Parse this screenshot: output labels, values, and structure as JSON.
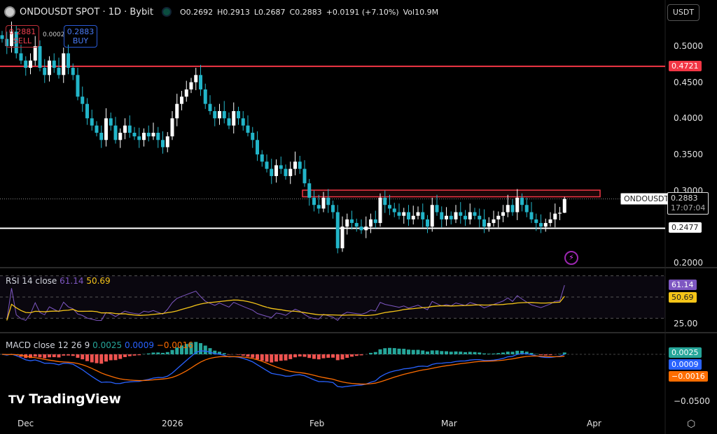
{
  "header": {
    "symbol": "ONDOUSDT SPOT · 1D · Bybit",
    "open": "O0.2692",
    "high": "H0.2913",
    "low": "L0.2687",
    "close": "C0.2883",
    "change": "+0.0191 (+7.10%)",
    "volume": "Vol10.9M"
  },
  "trade": {
    "sell_price": "0.2881",
    "sell_label": "SELL",
    "spread": "0.0002",
    "buy_price": "0.2883",
    "buy_label": "BUY"
  },
  "currency": "USDT",
  "price_axis": [
    "0.5000",
    "0.4500",
    "0.4000",
    "0.3500",
    "0.3000",
    "0.2000"
  ],
  "levels": {
    "resistance_top": "0.4721",
    "support": "0.2477",
    "symbol_tag": "ONDOUSDT",
    "last_price": "0.2883",
    "countdown": "17:07:04"
  },
  "rsi": {
    "label": "RSI 14 close",
    "value": "61.14",
    "ma": "50.69",
    "axis": [
      "25.00"
    ]
  },
  "macd": {
    "label": "MACD close 12 26 9",
    "hist": "0.0025",
    "macd": "0.0009",
    "signal": "−0.0016",
    "axis": [
      "−0.0500"
    ]
  },
  "time_axis": [
    "Dec",
    "2026",
    "Feb",
    "Mar",
    "Apr"
  ],
  "brand": "TradingView",
  "colors": {
    "up": "#ffffff",
    "down": "#22b5c9",
    "resistance": "#f23645",
    "rsi": "#7e57c2",
    "rsi_ma": "#f5c518",
    "macd": "#2962ff",
    "signal": "#ff6d00",
    "hist_up": "#26a69a",
    "hist_down": "#ef5350"
  },
  "chart_data": {
    "type": "candlestick",
    "start_date": "2025-11-26",
    "closes": [
      0.51,
      0.5,
      0.52,
      0.49,
      0.48,
      0.47,
      0.48,
      0.5,
      0.47,
      0.46,
      0.48,
      0.47,
      0.46,
      0.49,
      0.47,
      0.46,
      0.43,
      0.42,
      0.4,
      0.39,
      0.38,
      0.37,
      0.4,
      0.39,
      0.37,
      0.38,
      0.39,
      0.38,
      0.375,
      0.37,
      0.38,
      0.375,
      0.38,
      0.37,
      0.36,
      0.375,
      0.4,
      0.42,
      0.43,
      0.44,
      0.45,
      0.46,
      0.44,
      0.42,
      0.41,
      0.4,
      0.41,
      0.4,
      0.39,
      0.41,
      0.4,
      0.39,
      0.38,
      0.37,
      0.35,
      0.34,
      0.33,
      0.32,
      0.335,
      0.33,
      0.32,
      0.33,
      0.34,
      0.33,
      0.31,
      0.29,
      0.28,
      0.275,
      0.29,
      0.28,
      0.27,
      0.22,
      0.25,
      0.26,
      0.255,
      0.25,
      0.245,
      0.25,
      0.26,
      0.255,
      0.29,
      0.28,
      0.275,
      0.27,
      0.265,
      0.27,
      0.26,
      0.265,
      0.27,
      0.26,
      0.25,
      0.28,
      0.27,
      0.26,
      0.265,
      0.26,
      0.27,
      0.265,
      0.26,
      0.27,
      0.265,
      0.26,
      0.25,
      0.255,
      0.26,
      0.265,
      0.27,
      0.28,
      0.27,
      0.29,
      0.28,
      0.27,
      0.26,
      0.255,
      0.25,
      0.255,
      0.26,
      0.268,
      0.2692,
      0.2883
    ],
    "last": {
      "open": 0.2692,
      "high": 0.2913,
      "low": 0.2687,
      "close": 0.2883
    },
    "horizontal_lines": [
      0.4721,
      0.2477
    ],
    "zone": [
      0.2913,
      0.3005
    ],
    "ylim": [
      0.2,
      0.5
    ]
  }
}
